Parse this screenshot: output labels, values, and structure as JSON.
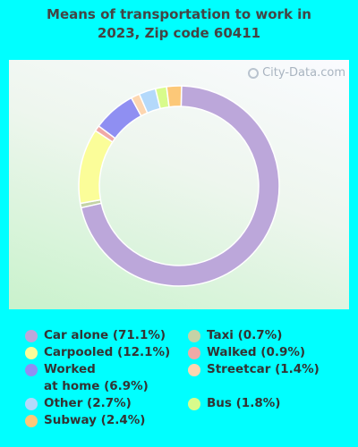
{
  "title": "Means of transportation to work in\n2023, Zip code 60411",
  "watermark": "City-Data.com",
  "chart_data": {
    "type": "pie",
    "style": "donut",
    "title": "Means of transportation to work in 2023, Zip code 60411",
    "slices": [
      {
        "name": "Car alone",
        "value": 71.1,
        "label": "Car alone (71.1%)",
        "color": "#bca7da"
      },
      {
        "name": "Taxi",
        "value": 0.7,
        "label": "Taxi (0.7%)",
        "color": "#c4d3a6"
      },
      {
        "name": "Carpooled",
        "value": 12.1,
        "label": "Carpooled (12.1%)",
        "color": "#fbfd99"
      },
      {
        "name": "Walked",
        "value": 0.9,
        "label": "Walked (0.9%)",
        "color": "#f0a9a6"
      },
      {
        "name": "Worked at home",
        "value": 6.9,
        "label": "Worked\nat home (6.9%)",
        "color": "#8f8ff2"
      },
      {
        "name": "Streetcar",
        "value": 1.4,
        "label": "Streetcar (1.4%)",
        "color": "#fdd6b0"
      },
      {
        "name": "Other",
        "value": 2.7,
        "label": "Other (2.7%)",
        "color": "#b4d9fb"
      },
      {
        "name": "Bus",
        "value": 1.8,
        "label": "Bus (1.8%)",
        "color": "#d8fb8b"
      },
      {
        "name": "Subway",
        "value": 2.4,
        "label": "Subway (2.4%)",
        "color": "#fcc878"
      }
    ],
    "legend_placement": "bottom"
  }
}
